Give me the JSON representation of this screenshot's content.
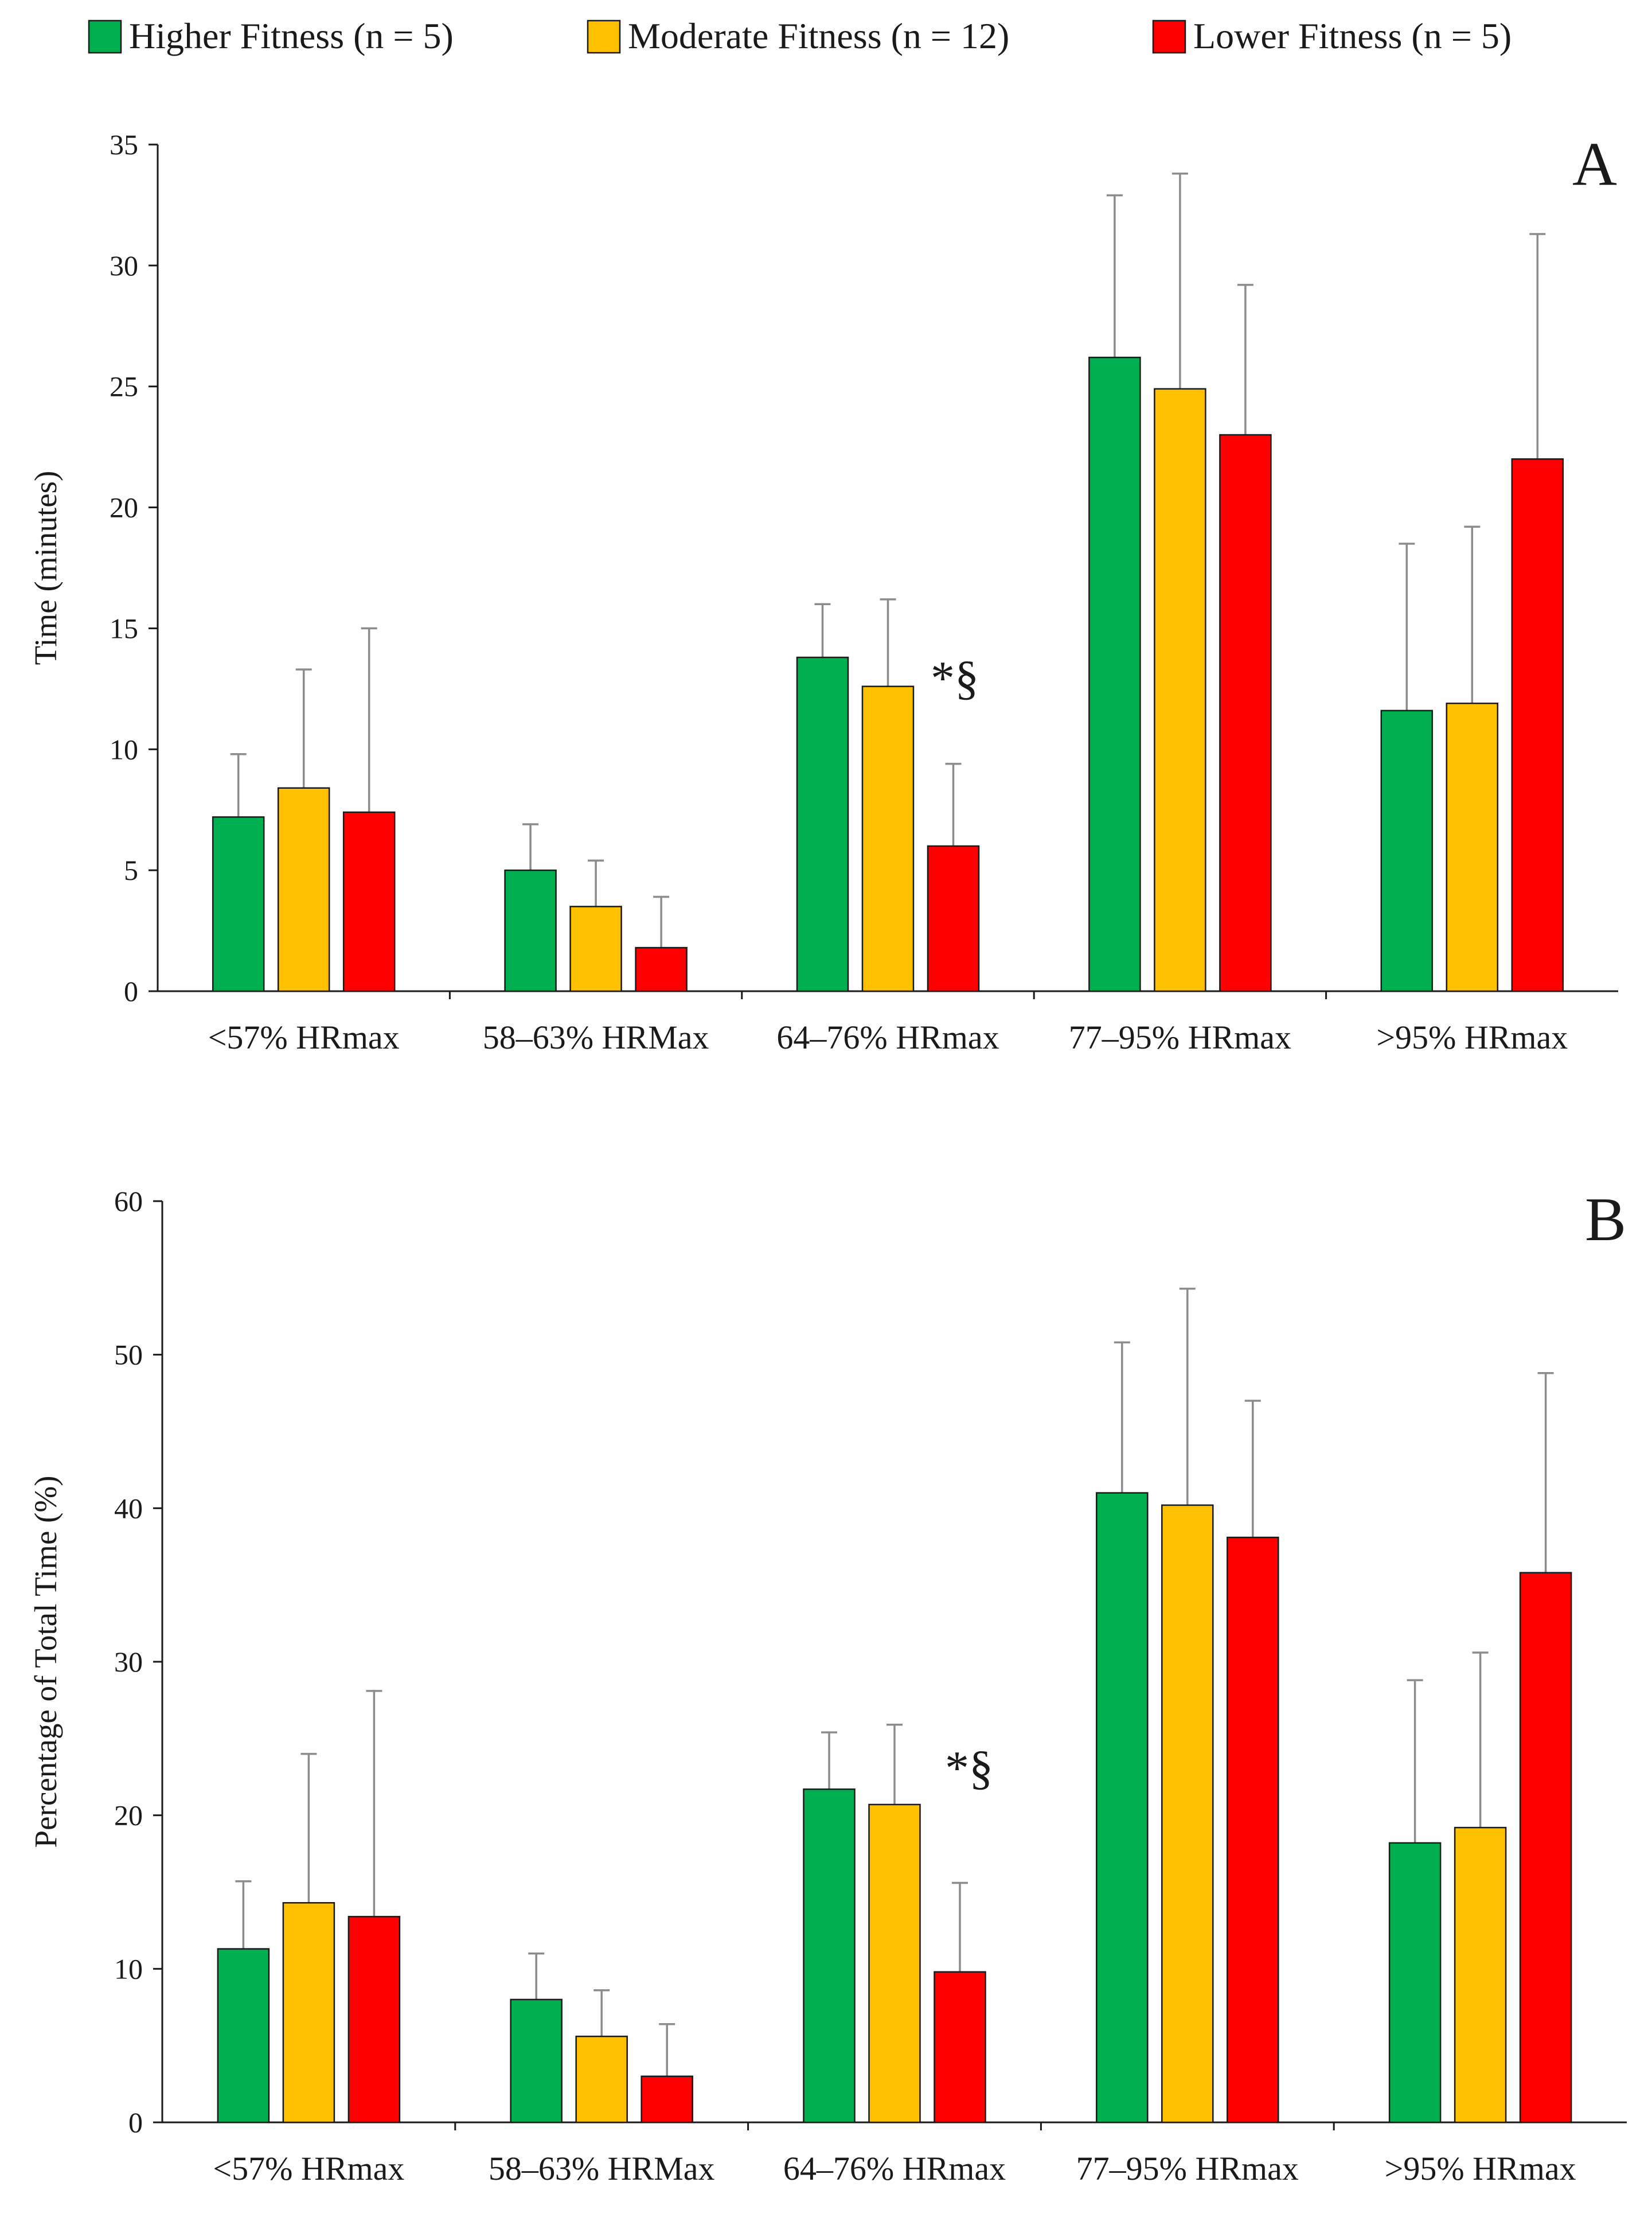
{
  "legend": {
    "items": [
      {
        "label": "Higher Fitness (n = 5)",
        "color": "#00b050"
      },
      {
        "label": "Moderate Fitness (n = 12)",
        "color": "#ffc000"
      },
      {
        "label": "Lower Fitness (n = 5)",
        "color": "#ff0000"
      }
    ]
  },
  "chart_data": [
    {
      "type": "bar",
      "panel": "A",
      "title": "",
      "xlabel": "",
      "ylabel": "Time (minutes)",
      "ylim": [
        0,
        35
      ],
      "yticks": [
        0,
        5,
        10,
        15,
        20,
        25,
        30,
        35
      ],
      "grid": false,
      "categories": [
        "<57% HRmax",
        "58–63% HRMax",
        "64–76% HRmax",
        "77–95% HRmax",
        ">95% HRmax"
      ],
      "series": [
        {
          "name": "Higher Fitness (n = 5)",
          "color": "#00b050",
          "values": [
            7.2,
            5.0,
            13.8,
            26.2,
            11.6
          ],
          "error": [
            2.6,
            1.9,
            2.2,
            6.7,
            6.9
          ]
        },
        {
          "name": "Moderate Fitness (n = 12)",
          "color": "#ffc000",
          "values": [
            8.4,
            3.5,
            12.6,
            24.9,
            11.9
          ],
          "error": [
            4.9,
            1.9,
            3.6,
            8.9,
            7.3
          ]
        },
        {
          "name": "Lower Fitness (n = 5)",
          "color": "#ff0000",
          "values": [
            7.4,
            1.8,
            6.0,
            23.0,
            22.0
          ],
          "error": [
            7.6,
            2.1,
            3.4,
            6.2,
            9.3
          ]
        }
      ],
      "annotations": [
        {
          "text": "*§",
          "category": "64–76% HRmax"
        }
      ]
    },
    {
      "type": "bar",
      "panel": "B",
      "title": "",
      "xlabel": "",
      "ylabel": "Percentage of Total Time (%)",
      "ylim": [
        0,
        60
      ],
      "yticks": [
        0,
        10,
        20,
        30,
        40,
        50,
        60
      ],
      "grid": false,
      "categories": [
        "<57% HRmax",
        "58–63% HRMax",
        "64–76% HRmax",
        "77–95% HRmax",
        ">95% HRmax"
      ],
      "series": [
        {
          "name": "Higher Fitness (n = 5)",
          "color": "#00b050",
          "values": [
            11.3,
            8.0,
            21.7,
            41.0,
            18.2
          ],
          "error": [
            4.4,
            3.0,
            3.7,
            9.8,
            10.6
          ]
        },
        {
          "name": "Moderate Fitness (n = 12)",
          "color": "#ffc000",
          "values": [
            14.3,
            5.6,
            20.7,
            40.2,
            19.2
          ],
          "error": [
            9.7,
            3.0,
            5.2,
            14.1,
            11.4
          ]
        },
        {
          "name": "Lower Fitness (n = 5)",
          "color": "#ff0000",
          "values": [
            13.4,
            3.0,
            9.8,
            38.1,
            35.8
          ],
          "error": [
            14.7,
            3.4,
            5.8,
            8.9,
            13.0
          ]
        }
      ],
      "annotations": [
        {
          "text": "*§",
          "category": "64–76% HRmax"
        }
      ]
    }
  ]
}
